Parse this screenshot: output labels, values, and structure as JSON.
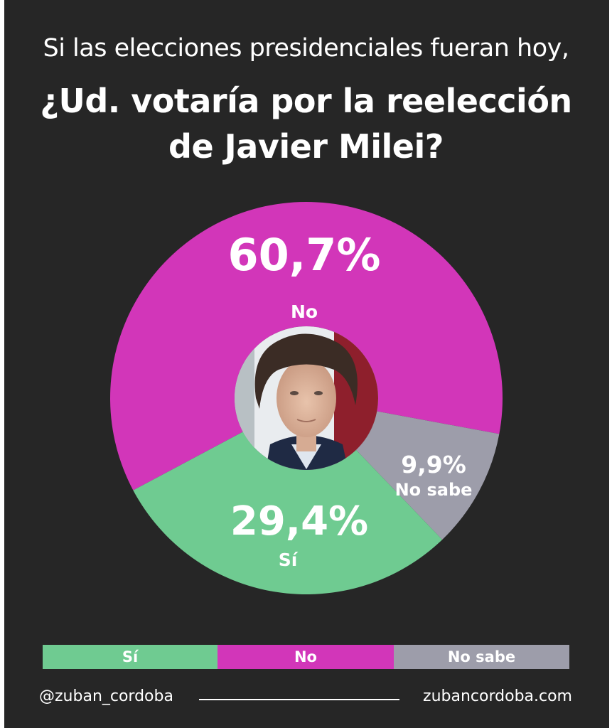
{
  "header": {
    "subtitle": "Si las elecciones presidenciales fueran hoy,",
    "title_line1": "¿Ud. votaría por la reelección",
    "title_line2": "de Javier Milei?"
  },
  "chart_data": {
    "type": "pie",
    "slices": [
      {
        "name": "No",
        "value": 60.7,
        "label": "60,7%",
        "color": "#d236b9"
      },
      {
        "name": "No sabe",
        "value": 9.9,
        "label": "9,9%",
        "color": "#9d9daa"
      },
      {
        "name": "Sí",
        "value": 29.4,
        "label": "29,4%",
        "color": "#6fcb91"
      }
    ],
    "legend_placement": "bottom"
  },
  "center_image": {
    "description": "portrait-photo"
  },
  "legend": [
    {
      "label": "Sí",
      "color": "#6fcb91"
    },
    {
      "label": "No",
      "color": "#d236b9"
    },
    {
      "label": "No sabe",
      "color": "#9d9daa"
    }
  ],
  "footer": {
    "handle": "@zuban_cordoba",
    "website": "zubancordoba.com"
  },
  "colors": {
    "background": "#262626",
    "text": "#ffffff"
  }
}
